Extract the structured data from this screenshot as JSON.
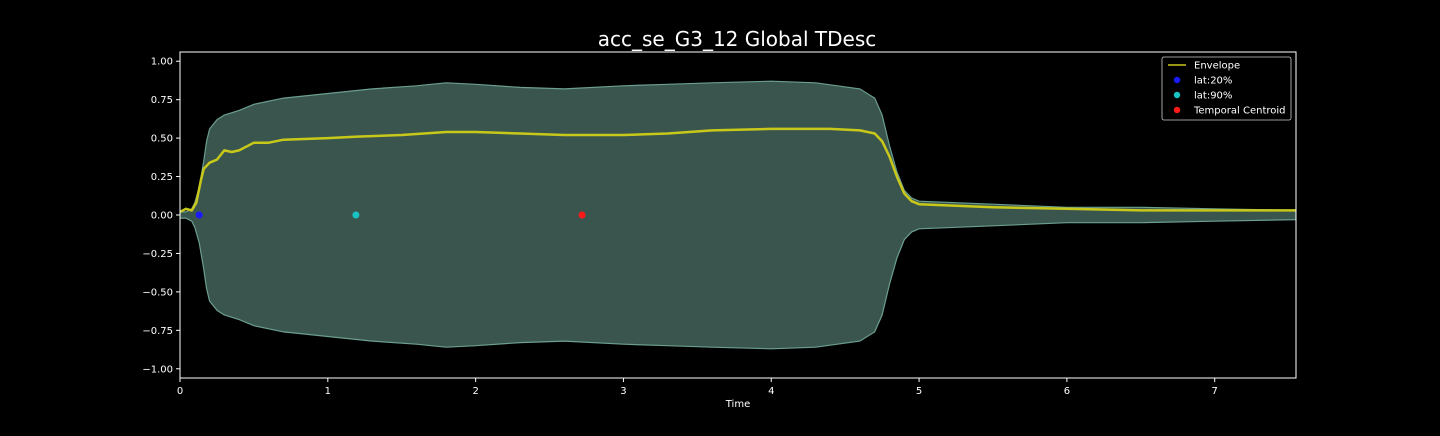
{
  "figure": {
    "background": "#000000",
    "text_color": "#ffffff"
  },
  "chart_data": {
    "type": "line",
    "title": "acc_se_G3_12 Global TDesc",
    "xlabel": "Time",
    "ylabel": "",
    "xlim": [
      0,
      7.55
    ],
    "ylim": [
      -1.06,
      1.06
    ],
    "xticks": [
      0,
      1,
      2,
      3,
      4,
      5,
      6,
      7
    ],
    "yticks": [
      1.0,
      0.75,
      0.5,
      0.25,
      0.0,
      -0.25,
      -0.5,
      -0.75,
      -1.0
    ],
    "ytick_labels": [
      "1.00",
      "0.75",
      "0.50",
      "0.25",
      "0.00",
      "−0.25",
      "−0.50",
      "−0.75",
      "−1.00"
    ],
    "grid": false,
    "legend_position": "top-right",
    "waveform": {
      "fill_color": "#3a554e",
      "edge_color": "#6b9e90",
      "t": [
        0,
        0.04,
        0.08,
        0.1,
        0.13,
        0.16,
        0.18,
        0.2,
        0.25,
        0.3,
        0.4,
        0.5,
        0.7,
        1.0,
        1.3,
        1.6,
        1.8,
        2.0,
        2.3,
        2.6,
        3.0,
        3.3,
        3.6,
        4.0,
        4.3,
        4.6,
        4.7,
        4.75,
        4.8,
        4.85,
        4.9,
        4.95,
        5.0,
        5.5,
        6.0,
        6.5,
        7.0,
        7.55
      ],
      "max": [
        0.02,
        0.02,
        0.04,
        0.08,
        0.18,
        0.35,
        0.48,
        0.56,
        0.62,
        0.65,
        0.68,
        0.72,
        0.76,
        0.79,
        0.82,
        0.84,
        0.86,
        0.85,
        0.83,
        0.82,
        0.84,
        0.85,
        0.86,
        0.87,
        0.86,
        0.82,
        0.76,
        0.65,
        0.45,
        0.28,
        0.16,
        0.11,
        0.09,
        0.07,
        0.05,
        0.05,
        0.04,
        0.03
      ],
      "min": [
        -0.02,
        -0.02,
        -0.04,
        -0.08,
        -0.18,
        -0.35,
        -0.48,
        -0.56,
        -0.62,
        -0.65,
        -0.68,
        -0.72,
        -0.76,
        -0.79,
        -0.82,
        -0.84,
        -0.86,
        -0.85,
        -0.83,
        -0.82,
        -0.84,
        -0.85,
        -0.86,
        -0.87,
        -0.86,
        -0.82,
        -0.76,
        -0.65,
        -0.45,
        -0.28,
        -0.16,
        -0.11,
        -0.09,
        -0.07,
        -0.05,
        -0.05,
        -0.04,
        -0.03
      ]
    },
    "envelope": {
      "name": "Envelope",
      "color": "#c8c81a",
      "t": [
        0,
        0.04,
        0.08,
        0.11,
        0.14,
        0.16,
        0.2,
        0.25,
        0.3,
        0.35,
        0.4,
        0.5,
        0.6,
        0.7,
        1.0,
        1.2,
        1.5,
        1.8,
        2.0,
        2.3,
        2.6,
        3.0,
        3.3,
        3.6,
        4.0,
        4.2,
        4.4,
        4.6,
        4.7,
        4.75,
        4.8,
        4.85,
        4.9,
        4.95,
        5.0,
        5.5,
        6.0,
        6.5,
        7.0,
        7.55
      ],
      "values": [
        0.02,
        0.04,
        0.03,
        0.08,
        0.22,
        0.3,
        0.34,
        0.36,
        0.42,
        0.41,
        0.42,
        0.47,
        0.47,
        0.49,
        0.5,
        0.51,
        0.52,
        0.54,
        0.54,
        0.53,
        0.52,
        0.52,
        0.53,
        0.55,
        0.56,
        0.56,
        0.56,
        0.55,
        0.53,
        0.48,
        0.38,
        0.25,
        0.14,
        0.09,
        0.07,
        0.05,
        0.04,
        0.03,
        0.03,
        0.03
      ]
    },
    "markers": [
      {
        "name": "lat:20%",
        "x": 0.13,
        "y": 0.0,
        "color": "#1a1aff"
      },
      {
        "name": "lat:90%",
        "x": 1.19,
        "y": 0.0,
        "color": "#19c3c3"
      },
      {
        "name": "Temporal Centroid",
        "x": 2.72,
        "y": 0.0,
        "color": "#ff1a1a"
      }
    ]
  }
}
